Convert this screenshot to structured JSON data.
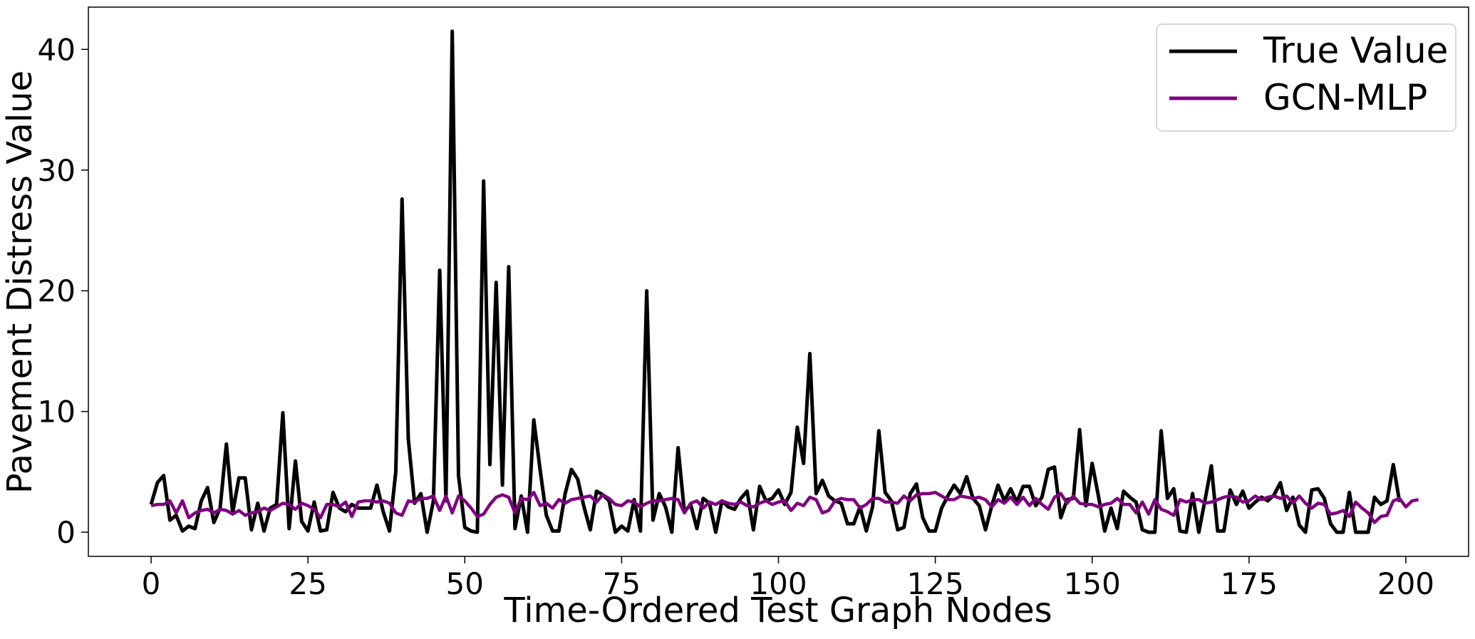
{
  "chart_data": {
    "type": "line",
    "title": "",
    "xlabel": "Time-Ordered Test Graph Nodes",
    "ylabel": "Pavement Distress Value",
    "xlim": [
      -10,
      210
    ],
    "ylim": [
      -2,
      43.5
    ],
    "xticks": [
      0,
      25,
      50,
      75,
      100,
      125,
      150,
      175,
      200
    ],
    "yticks": [
      0,
      10,
      20,
      30,
      40
    ],
    "grid": false,
    "legend": "top-right",
    "series": [
      {
        "name": "True Value",
        "color": "#000000",
        "values": [
          2.3,
          4.1,
          4.7,
          1.0,
          1.4,
          0.1,
          0.5,
          0.3,
          2.6,
          3.7,
          0.8,
          2.0,
          7.3,
          1.6,
          4.5,
          4.5,
          0.2,
          2.4,
          0.1,
          2.0,
          2.3,
          9.9,
          0.3,
          5.9,
          0.9,
          0.1,
          2.5,
          0.1,
          0.2,
          3.3,
          2.0,
          1.7,
          2.3,
          2.0,
          2.0,
          2.0,
          3.9,
          1.7,
          0.1,
          5.0,
          27.6,
          7.7,
          2.4,
          3.2,
          0.0,
          2.6,
          21.7,
          2.6,
          41.5,
          4.7,
          0.4,
          0.1,
          0.0,
          29.1,
          5.6,
          20.7,
          3.9,
          22.0,
          0.3,
          3.0,
          0.0,
          9.3,
          5.2,
          1.4,
          0.1,
          0.1,
          3.2,
          5.2,
          4.4,
          2.1,
          0.2,
          3.4,
          3.1,
          2.6,
          0.0,
          0.5,
          0.1,
          2.7,
          0.1,
          20.0,
          1.0,
          3.2,
          2.1,
          0.0,
          7.0,
          1.7,
          2.3,
          0.3,
          2.8,
          2.4,
          0.0,
          2.6,
          2.1,
          1.9,
          2.8,
          3.4,
          0.2,
          3.8,
          2.6,
          2.8,
          3.5,
          2.3,
          3.3,
          8.7,
          5.7,
          14.8,
          3.2,
          4.3,
          3.0,
          2.6,
          2.4,
          0.7,
          0.7,
          2.1,
          0.1,
          2.1,
          8.4,
          3.3,
          2.6,
          0.2,
          0.4,
          3.2,
          4.0,
          1.2,
          0.1,
          0.1,
          2.0,
          3.0,
          3.9,
          3.2,
          4.6,
          2.8,
          2.2,
          0.2,
          2.2,
          3.9,
          2.6,
          3.6,
          2.5,
          3.8,
          3.8,
          2.2,
          2.9,
          5.2,
          5.4,
          1.2,
          2.7,
          2.8,
          8.5,
          2.2,
          5.7,
          3.0,
          0.1,
          2.0,
          0.3,
          3.4,
          2.9,
          2.5,
          0.2,
          0.0,
          0.0,
          8.4,
          2.8,
          3.6,
          0.1,
          0.0,
          3.2,
          0.0,
          2.7,
          5.5,
          0.1,
          0.1,
          3.5,
          2.3,
          3.4,
          2.0,
          2.5,
          2.9,
          2.6,
          3.1,
          4.1,
          1.8,
          2.9,
          0.6,
          0.0,
          3.5,
          3.6,
          2.8,
          0.7,
          0.0,
          0.0,
          3.3,
          0.0,
          0.0,
          0.0,
          2.9,
          2.3,
          2.6,
          5.6,
          2.5
        ]
      },
      {
        "name": "GCN-MLP",
        "color": "#800080",
        "values": [
          2.2,
          2.3,
          2.3,
          2.6,
          1.6,
          2.6,
          1.2,
          1.6,
          1.8,
          1.9,
          1.6,
          1.9,
          1.8,
          1.5,
          1.8,
          1.4,
          1.6,
          1.7,
          2.0,
          1.8,
          2.1,
          2.4,
          2.3,
          1.9,
          2.4,
          2.2,
          1.9,
          1.2,
          2.3,
          2.3,
          2.1,
          2.5,
          1.3,
          2.5,
          2.6,
          2.6,
          2.5,
          2.6,
          2.4,
          1.6,
          1.4,
          2.6,
          2.5,
          2.8,
          2.8,
          3.0,
          1.8,
          3.0,
          1.6,
          3.0,
          2.6,
          2.0,
          1.3,
          1.5,
          2.3,
          2.9,
          3.1,
          2.9,
          1.6,
          2.8,
          2.7,
          3.3,
          2.2,
          2.4,
          2.0,
          2.7,
          2.4,
          2.7,
          2.8,
          2.9,
          3.0,
          2.5,
          3.1,
          2.8,
          2.3,
          2.2,
          2.6,
          2.5,
          2.1,
          2.4,
          2.6,
          2.6,
          2.7,
          2.8,
          2.7,
          1.6,
          2.4,
          2.6,
          2.0,
          2.5,
          2.3,
          2.6,
          2.4,
          2.3,
          2.5,
          2.2,
          2.1,
          2.4,
          2.6,
          2.3,
          2.5,
          2.6,
          1.8,
          2.4,
          2.2,
          2.9,
          2.7,
          1.6,
          1.8,
          2.6,
          2.8,
          2.7,
          2.7,
          2.0,
          2.3,
          2.8,
          2.8,
          2.5,
          2.5,
          2.4,
          3.0,
          2.6,
          3.1,
          3.2,
          3.2,
          3.3,
          3.0,
          2.7,
          2.7,
          3.0,
          2.9,
          2.8,
          2.9,
          2.7,
          2.1,
          2.7,
          2.4,
          2.9,
          2.3,
          2.9,
          2.2,
          2.8,
          2.3,
          1.9,
          2.9,
          3.2,
          2.4,
          3.0,
          2.4,
          2.3,
          2.3,
          2.1,
          2.3,
          2.4,
          2.8,
          2.3,
          2.3,
          1.6,
          2.5,
          1.5,
          2.7,
          1.9,
          1.7,
          1.4,
          2.7,
          2.5,
          2.7,
          2.7,
          2.4,
          2.5,
          2.7,
          2.9,
          3.0,
          2.9,
          2.5,
          2.6,
          3.0,
          2.7,
          2.9,
          3.0,
          2.8,
          3.0,
          2.4,
          3.0,
          2.4,
          2.0,
          2.4,
          2.3,
          1.5,
          1.6,
          1.8,
          1.3,
          2.5,
          2.0,
          1.6,
          0.8,
          1.3,
          1.4,
          2.6,
          2.8,
          2.1,
          2.6,
          2.7
        ]
      }
    ]
  }
}
